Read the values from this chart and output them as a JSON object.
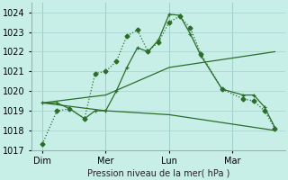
{
  "background_color": "#c8eee8",
  "grid_color": "#a8d8d0",
  "line_color": "#2a6e2a",
  "ylabel": "Pression niveau de la mer( hPa )",
  "ylim": [
    1017,
    1024.5
  ],
  "yticks": [
    1017,
    1018,
    1019,
    1020,
    1021,
    1022,
    1023,
    1024
  ],
  "x_tick_labels": [
    "Dim",
    "Mer",
    "Lun",
    "Mar"
  ],
  "x_tick_positions": [
    1,
    4,
    7,
    10
  ],
  "x_vlines": [
    1,
    4,
    7,
    10
  ],
  "xlim": [
    0.5,
    12.5
  ],
  "series": {
    "line1_dotted": {
      "x": [
        1.0,
        1.7,
        2.3,
        3.0,
        3.5,
        4.0,
        4.5,
        5.0,
        5.5,
        6.0,
        6.5,
        7.0,
        7.5,
        8.0,
        8.5,
        9.5,
        10.5,
        11.0,
        11.5,
        12.0
      ],
      "y": [
        1017.3,
        1019.0,
        1019.1,
        1018.6,
        1020.9,
        1021.0,
        1021.5,
        1022.8,
        1023.1,
        1022.0,
        1022.5,
        1023.5,
        1023.8,
        1023.2,
        1021.9,
        1020.1,
        1019.6,
        1019.5,
        1019.0,
        1018.1
      ]
    },
    "line2_solid_markers": {
      "x": [
        1.0,
        1.7,
        2.3,
        3.0,
        3.5,
        4.0,
        4.5,
        5.0,
        5.5,
        6.0,
        6.5,
        7.0,
        7.5,
        8.0,
        8.5,
        9.5,
        10.5,
        11.0,
        11.5,
        12.0
      ],
      "y": [
        1019.4,
        1019.4,
        1019.1,
        1018.6,
        1019.0,
        1019.0,
        1020.0,
        1021.2,
        1022.2,
        1022.0,
        1022.6,
        1023.9,
        1023.85,
        1022.9,
        1021.8,
        1020.1,
        1019.8,
        1019.8,
        1019.2,
        1018.15
      ]
    },
    "line3_upper_trend": {
      "x": [
        1.0,
        4.0,
        7.0,
        12.0
      ],
      "y": [
        1019.4,
        1019.8,
        1021.2,
        1022.0
      ]
    },
    "line4_lower_trend": {
      "x": [
        1.0,
        4.0,
        7.0,
        12.0
      ],
      "y": [
        1019.4,
        1019.0,
        1018.8,
        1018.0
      ]
    }
  }
}
